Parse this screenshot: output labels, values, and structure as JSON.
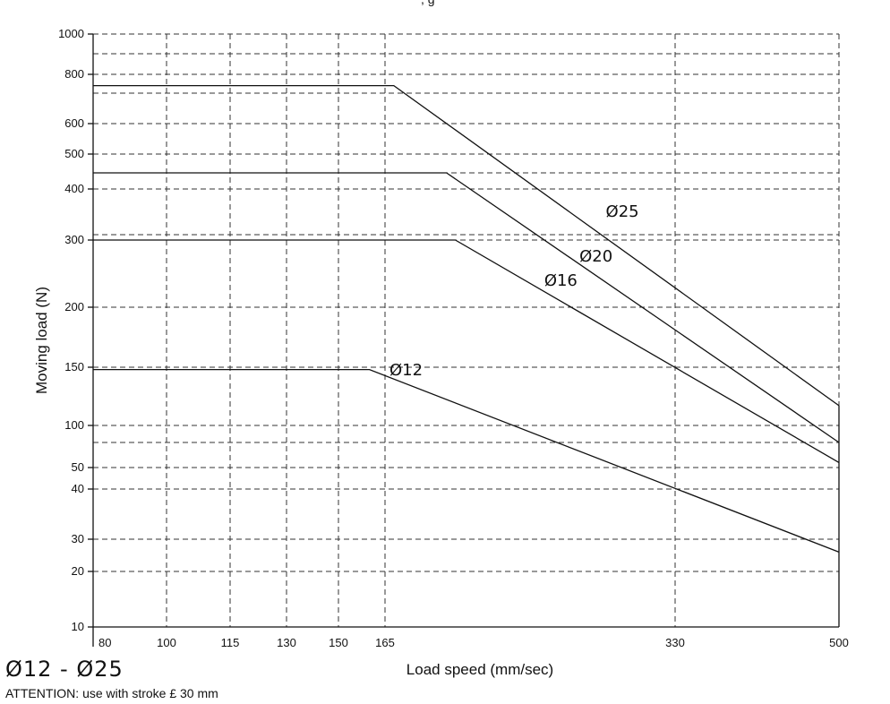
{
  "top_fragment": ", g",
  "caption_range": "Ø12 - Ø25",
  "caption_note": "ATTENTION: use with stroke £ 30 mm",
  "chart_data": {
    "type": "line",
    "title": "",
    "xlabel": "Load speed (mm/sec)",
    "ylabel": "Moving load (N)",
    "x_ticks": [
      80,
      100,
      115,
      130,
      150,
      165,
      330,
      500
    ],
    "y_ticks": [
      10,
      20,
      30,
      40,
      50,
      100,
      150,
      200,
      300,
      400,
      500,
      600,
      800,
      1000
    ],
    "x_grid_lines": [
      100,
      115,
      130,
      150,
      165,
      330
    ],
    "y_grid_lines": [
      20,
      30,
      40,
      50,
      75,
      100,
      150,
      200,
      300,
      310,
      400,
      440,
      500,
      600,
      700,
      800,
      900,
      1000
    ],
    "xlim": [
      80,
      500
    ],
    "ylim": [
      10,
      1000
    ],
    "grid": true,
    "series": [
      {
        "name": "Ø25",
        "label_at": [
          300,
          345
        ],
        "x": [
          80,
          170,
          500
        ],
        "y": [
          740,
          740,
          117
        ]
      },
      {
        "name": "Ø20",
        "label_at": [
          285,
          268
        ],
        "x": [
          80,
          200,
          500
        ],
        "y": [
          440,
          440,
          75
        ]
      },
      {
        "name": "Ø16",
        "label_at": [
          265,
          232
        ],
        "x": [
          80,
          205,
          500
        ],
        "y": [
          300,
          300,
          55
        ]
      },
      {
        "name": "Ø12",
        "label_at": [
          177,
          143
        ],
        "x": [
          80,
          160,
          500
        ],
        "y": [
          148,
          148,
          26
        ]
      }
    ]
  }
}
